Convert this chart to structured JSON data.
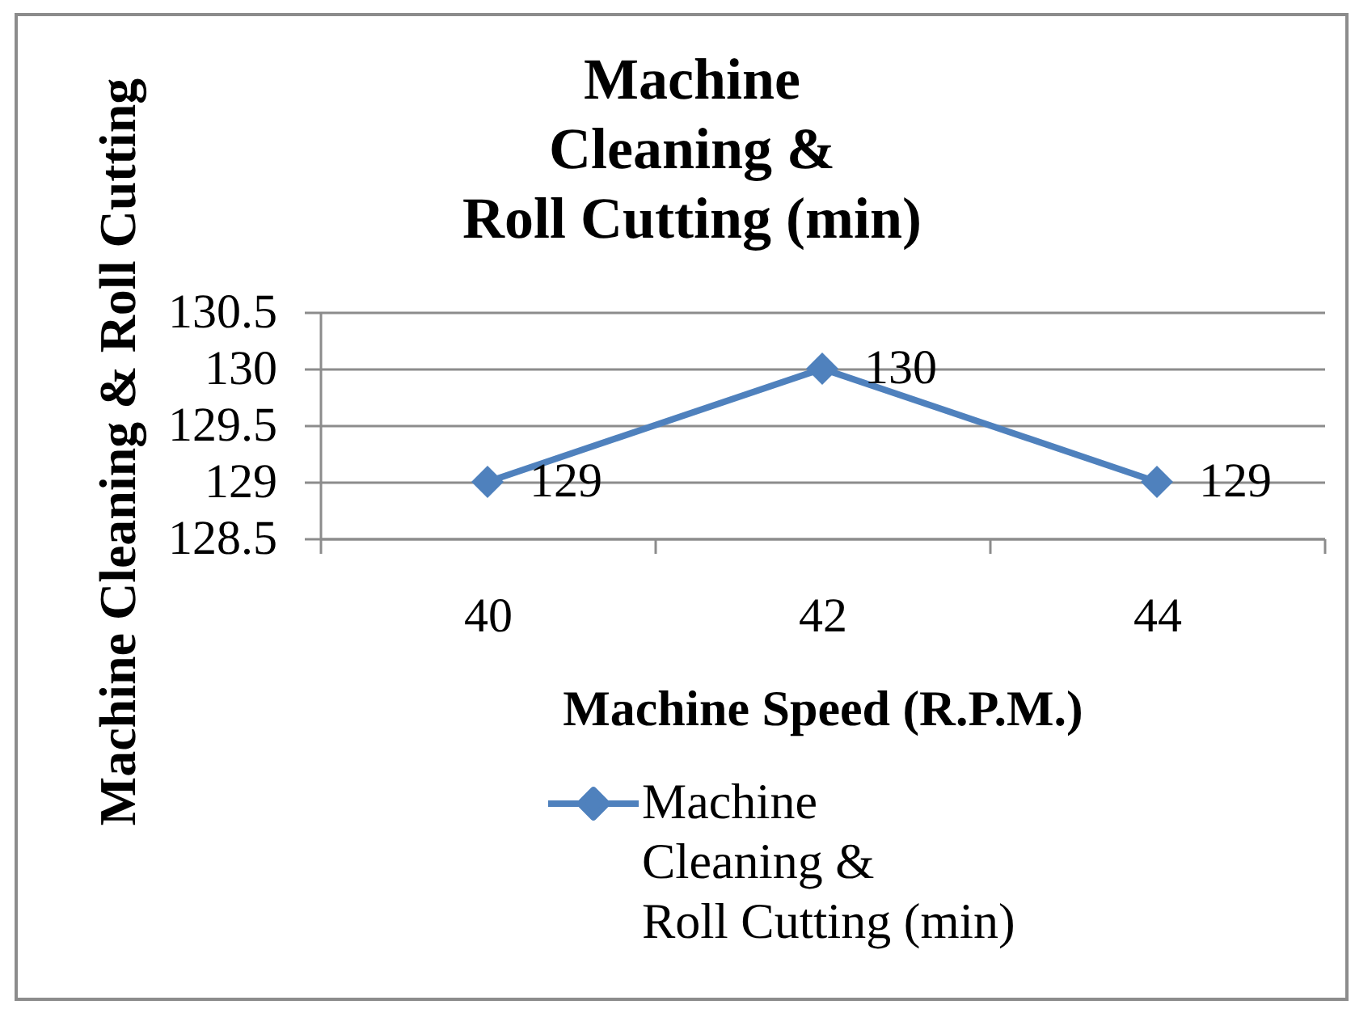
{
  "chart_data": {
    "type": "line",
    "title": "Machine Cleaning & Roll Cutting (min)",
    "xlabel": "Machine Speed (R.P.M.)",
    "ylabel": "Machine Cleaning & Roll Cutting",
    "categories": [
      "40",
      "42",
      "44"
    ],
    "series": [
      {
        "name": "Machine Cleaning & Roll Cutting (min)",
        "color": "#4f81bd",
        "values": [
          129,
          130,
          129
        ]
      }
    ],
    "ylim": [
      128.5,
      130.5
    ],
    "yticks": [
      128.5,
      129,
      129.5,
      130,
      130.5
    ],
    "grid": "y",
    "legend": "bottom",
    "marker": "diamond",
    "line_style": "solid",
    "data_labels": true
  }
}
